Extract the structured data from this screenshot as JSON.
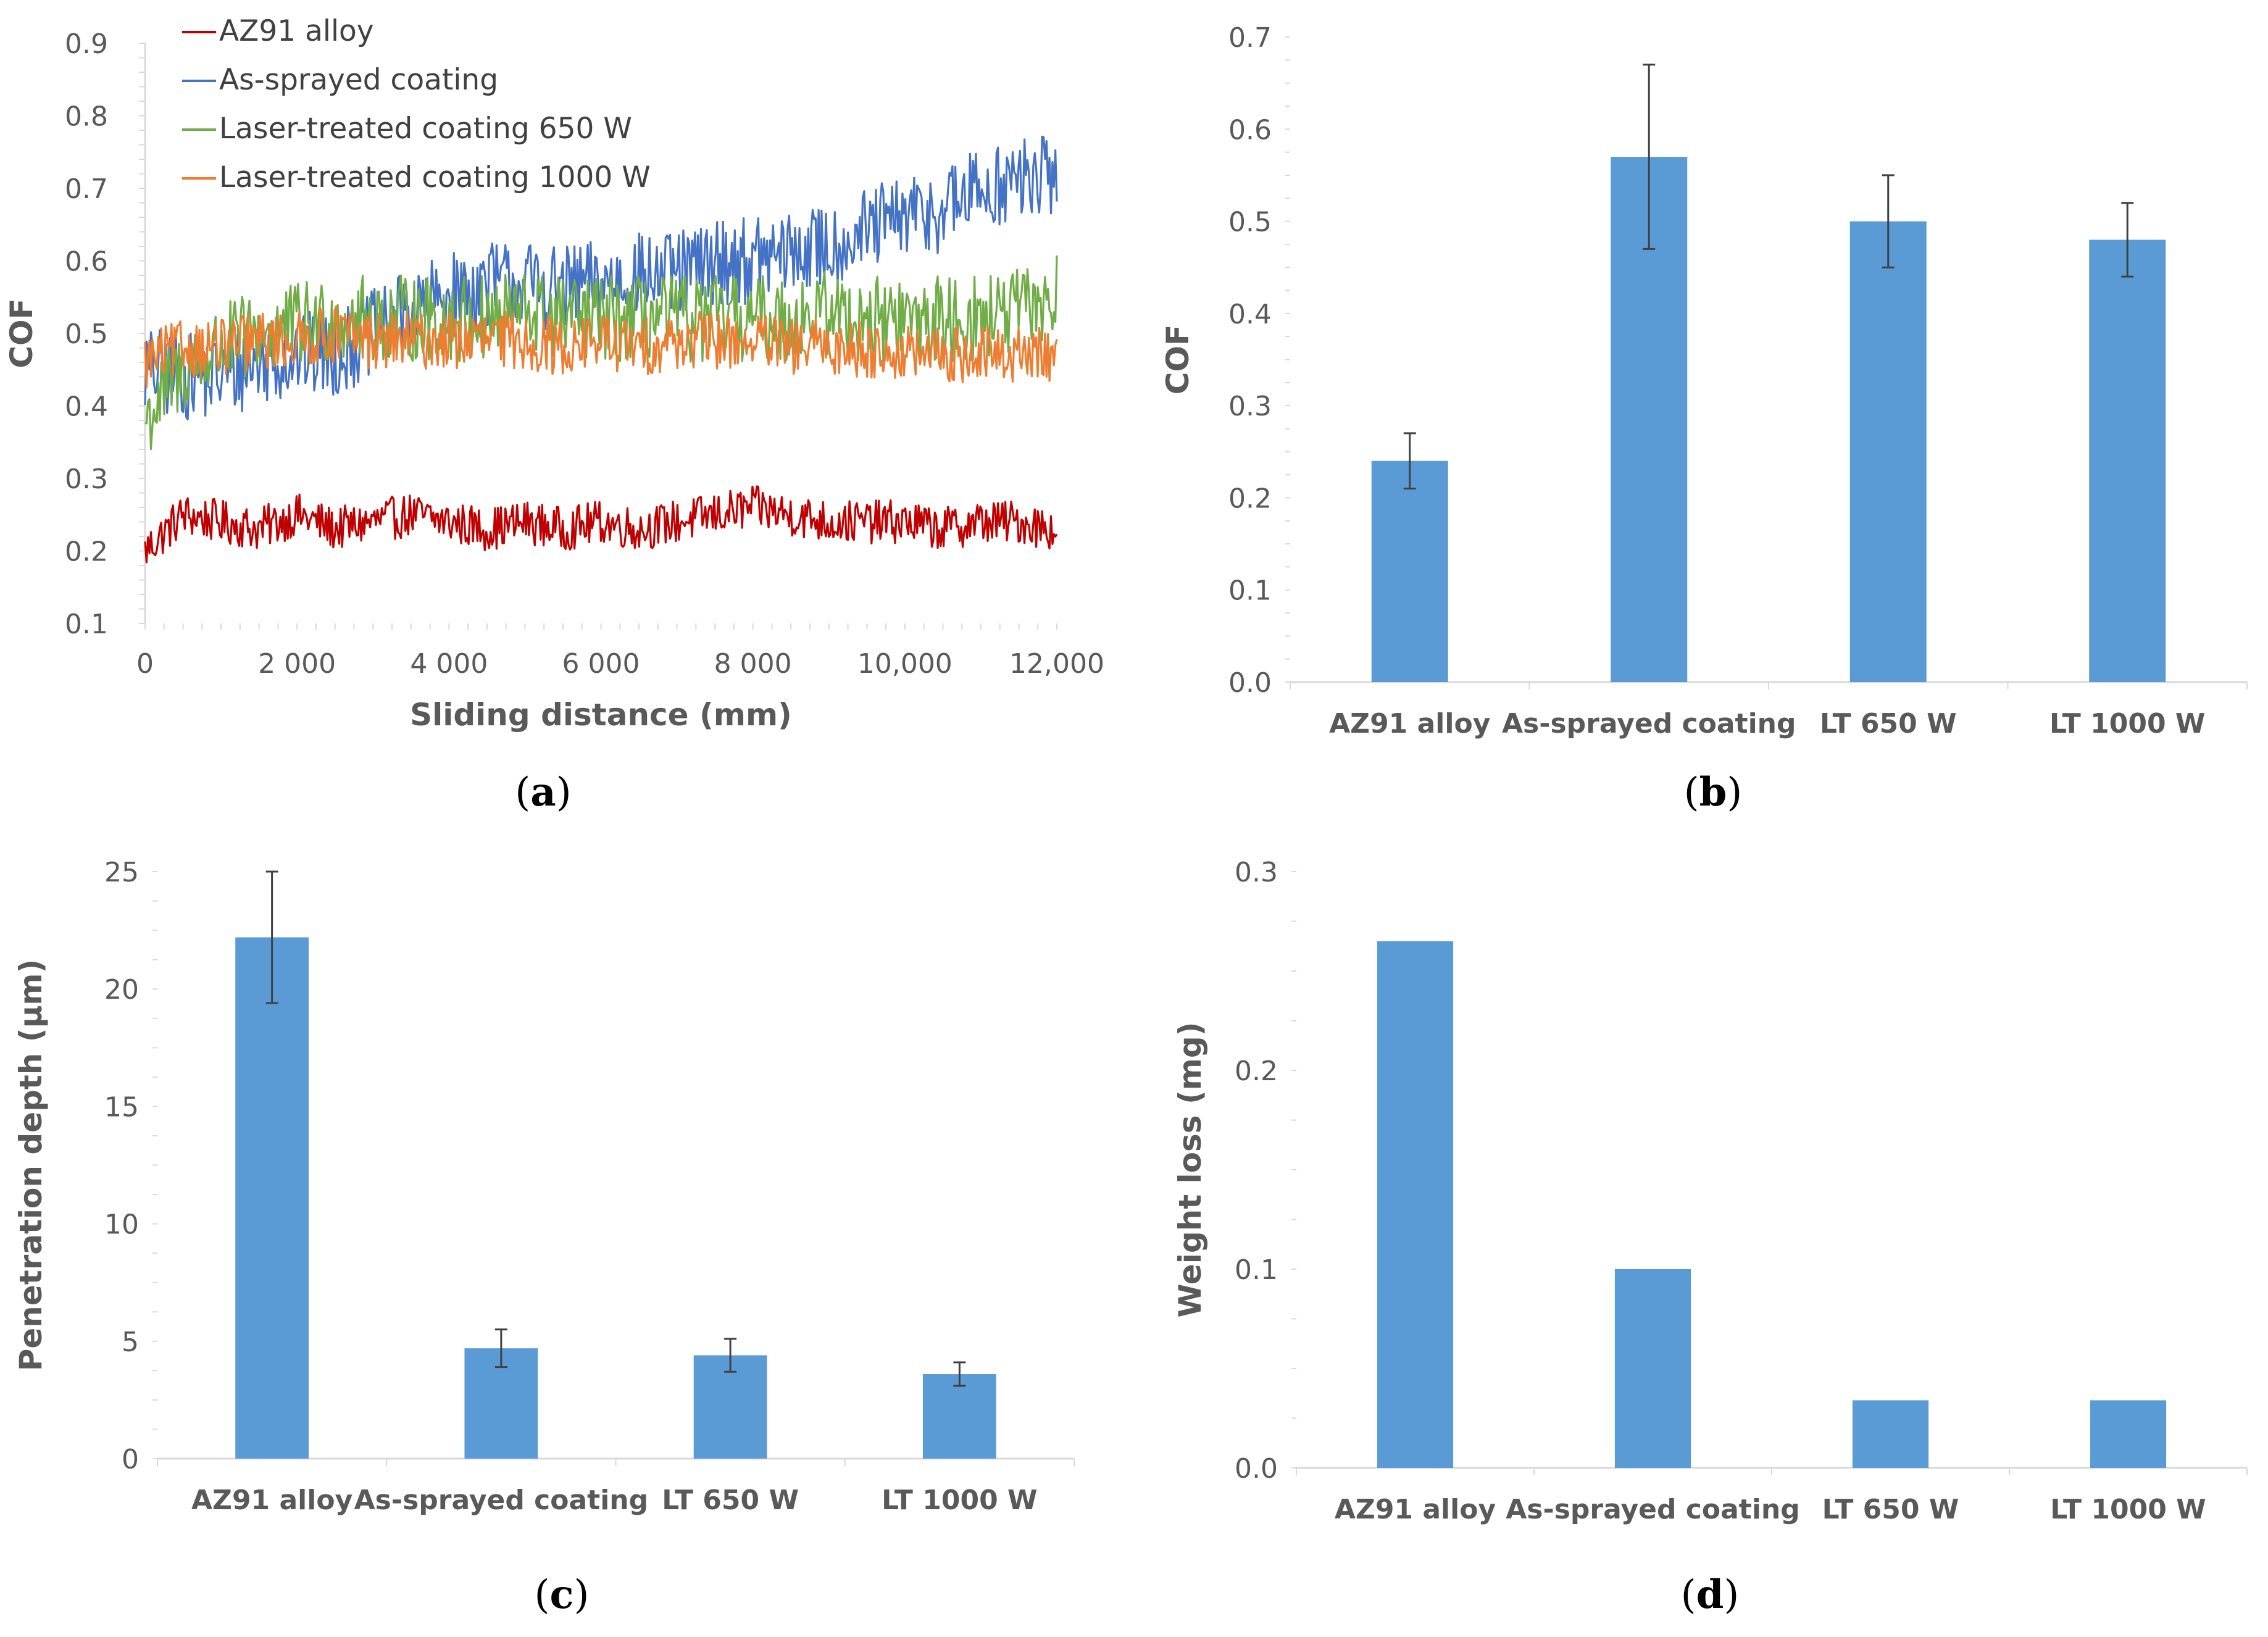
{
  "colors": {
    "bar": "#5b9bd5",
    "axis": "#d9d9d9",
    "text": "#595959",
    "az91": "#c00000",
    "as_sprayed": "#4472c4",
    "lt650": "#70ad47",
    "lt1000": "#ed7d31"
  },
  "chart_data": [
    {
      "id": "a",
      "type": "line",
      "label_letter": "a",
      "xlabel": "Sliding distance (mm)",
      "ylabel": "COF",
      "xlim": [
        0,
        12000
      ],
      "ylim": [
        0.1,
        0.9
      ],
      "xticks": [
        {
          "value": 0,
          "label": "0"
        },
        {
          "value": 2000,
          "label": "2 000"
        },
        {
          "value": 4000,
          "label": "4 000"
        },
        {
          "value": 6000,
          "label": "6 000"
        },
        {
          "value": 8000,
          "label": "8 000"
        },
        {
          "value": 10000,
          "label": "10,000"
        },
        {
          "value": 12000,
          "label": "12,000"
        }
      ],
      "yticks": [
        {
          "value": 0.1,
          "label": "0.1"
        },
        {
          "value": 0.2,
          "label": "0.2"
        },
        {
          "value": 0.3,
          "label": "0.3"
        },
        {
          "value": 0.4,
          "label": "0.4"
        },
        {
          "value": 0.5,
          "label": "0.5"
        },
        {
          "value": 0.6,
          "label": "0.6"
        },
        {
          "value": 0.7,
          "label": "0.7"
        },
        {
          "value": 0.8,
          "label": "0.8"
        },
        {
          "value": 0.9,
          "label": "0.9"
        }
      ],
      "legend_position": "top-left",
      "series": [
        {
          "name": "AZ91 alloy",
          "color": "#c00000",
          "x": [
            0,
            500,
            1000,
            1500,
            2000,
            2500,
            3000,
            3500,
            4000,
            4500,
            5000,
            5500,
            6000,
            6500,
            7000,
            7500,
            8000,
            8500,
            9000,
            9500,
            10000,
            10500,
            11000,
            11500,
            12000
          ],
          "y": [
            0.2,
            0.25,
            0.24,
            0.23,
            0.25,
            0.23,
            0.24,
            0.25,
            0.24,
            0.23,
            0.24,
            0.23,
            0.24,
            0.23,
            0.24,
            0.25,
            0.26,
            0.25,
            0.24,
            0.24,
            0.24,
            0.23,
            0.24,
            0.24,
            0.23
          ],
          "band": 0.03
        },
        {
          "name": "As-sprayed coating",
          "color": "#4472c4",
          "x": [
            0,
            500,
            1000,
            1500,
            2000,
            2500,
            3000,
            3500,
            4000,
            4500,
            5000,
            5500,
            6000,
            6500,
            7000,
            7500,
            8000,
            8500,
            9000,
            9500,
            10000,
            10500,
            11000,
            11500,
            12000
          ],
          "y": [
            0.45,
            0.44,
            0.44,
            0.46,
            0.47,
            0.47,
            0.5,
            0.53,
            0.55,
            0.57,
            0.57,
            0.56,
            0.57,
            0.58,
            0.58,
            0.6,
            0.6,
            0.61,
            0.62,
            0.64,
            0.66,
            0.67,
            0.7,
            0.71,
            0.72
          ],
          "band": 0.06
        },
        {
          "name": "Laser-treated coating 650 W",
          "color": "#70ad47",
          "x": [
            0,
            500,
            1000,
            1500,
            2000,
            2500,
            3000,
            3500,
            4000,
            4500,
            5000,
            5500,
            6000,
            6500,
            7000,
            7500,
            8000,
            8500,
            9000,
            9500,
            10000,
            10500,
            11000,
            11500,
            12000
          ],
          "y": [
            0.38,
            0.45,
            0.48,
            0.5,
            0.51,
            0.52,
            0.52,
            0.52,
            0.52,
            0.52,
            0.53,
            0.52,
            0.52,
            0.52,
            0.52,
            0.52,
            0.52,
            0.52,
            0.53,
            0.52,
            0.52,
            0.52,
            0.52,
            0.53,
            0.55
          ],
          "band": 0.06
        },
        {
          "name": "Laser-treated coating 1000 W",
          "color": "#ed7d31",
          "x": [
            0,
            500,
            1000,
            1500,
            2000,
            2500,
            3000,
            3500,
            4000,
            4500,
            5000,
            5500,
            6000,
            6500,
            7000,
            7500,
            8000,
            8500,
            9000,
            9500,
            10000,
            10500,
            11000,
            11500,
            12000
          ],
          "y": [
            0.46,
            0.48,
            0.48,
            0.49,
            0.49,
            0.5,
            0.49,
            0.49,
            0.49,
            0.49,
            0.49,
            0.48,
            0.49,
            0.48,
            0.49,
            0.49,
            0.49,
            0.48,
            0.48,
            0.48,
            0.47,
            0.47,
            0.47,
            0.47,
            0.47
          ],
          "band": 0.04
        }
      ]
    },
    {
      "id": "b",
      "type": "bar",
      "label_letter": "b",
      "xlabel": "",
      "ylabel": "COF",
      "ylim": [
        0,
        0.7
      ],
      "yticks": [
        {
          "value": 0,
          "label": "0.0"
        },
        {
          "value": 0.1,
          "label": "0.1"
        },
        {
          "value": 0.2,
          "label": "0.2"
        },
        {
          "value": 0.3,
          "label": "0.3"
        },
        {
          "value": 0.4,
          "label": "0.4"
        },
        {
          "value": 0.5,
          "label": "0.5"
        },
        {
          "value": 0.6,
          "label": "0.6"
        },
        {
          "value": 0.7,
          "label": "0.7"
        }
      ],
      "categories": [
        "AZ91 alloy",
        "As-sprayed coating",
        "LT 650 W",
        "LT 1000 W"
      ],
      "values": [
        0.24,
        0.57,
        0.5,
        0.48
      ],
      "errors": [
        0.03,
        0.1,
        0.05,
        0.04
      ]
    },
    {
      "id": "c",
      "type": "bar",
      "label_letter": "c",
      "xlabel": "",
      "ylabel": "Penetration depth (µm)",
      "ylim": [
        0,
        25
      ],
      "yticks": [
        {
          "value": 0,
          "label": "0"
        },
        {
          "value": 5,
          "label": "5"
        },
        {
          "value": 10,
          "label": "10"
        },
        {
          "value": 15,
          "label": "15"
        },
        {
          "value": 20,
          "label": "20"
        },
        {
          "value": 25,
          "label": "25"
        }
      ],
      "categories": [
        "AZ91 alloy",
        "As-sprayed coating",
        "LT 650 W",
        "LT 1000 W"
      ],
      "values": [
        22.2,
        4.7,
        4.4,
        3.6
      ],
      "errors": [
        2.8,
        0.8,
        0.7,
        0.5
      ]
    },
    {
      "id": "d",
      "type": "bar",
      "label_letter": "d",
      "xlabel": "",
      "ylabel": "Weight loss (mg)",
      "ylim": [
        0,
        0.3
      ],
      "yticks": [
        {
          "value": 0,
          "label": "0.0"
        },
        {
          "value": 0.1,
          "label": "0.1"
        },
        {
          "value": 0.2,
          "label": "0.2"
        },
        {
          "value": 0.3,
          "label": "0.3"
        }
      ],
      "categories": [
        "AZ91 alloy",
        "As-sprayed coating",
        "LT 650 W",
        "LT 1000 W"
      ],
      "values": [
        0.265,
        0.1,
        0.034,
        0.034
      ],
      "errors": [
        0,
        0,
        0,
        0
      ]
    }
  ]
}
